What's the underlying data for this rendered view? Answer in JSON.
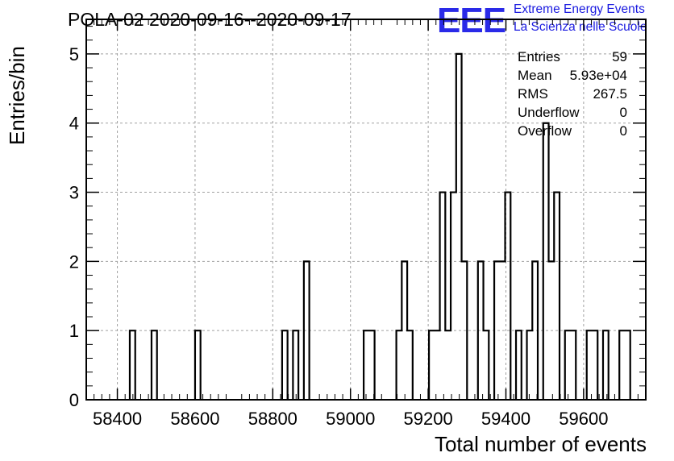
{
  "chart_data": {
    "type": "bar",
    "style": "step-histogram",
    "title": "POLA-02 2020-09-16--2020-09-17",
    "xlabel": "Total number of events",
    "ylabel": "Entries/bin",
    "xlim": [
      58320,
      59760
    ],
    "ylim": [
      0,
      5.5
    ],
    "bin_width": 14,
    "x_ticks": [
      58400,
      58600,
      58800,
      59000,
      59200,
      59400,
      59600
    ],
    "x_tick_labels": [
      "58400",
      "58600",
      "58800",
      "59000",
      "59200",
      "59400",
      "59600"
    ],
    "y_ticks": [
      0,
      1,
      2,
      3,
      4,
      5
    ],
    "y_tick_labels": [
      "0",
      "1",
      "2",
      "3",
      "4",
      "5"
    ],
    "grid": true,
    "bins": [
      {
        "x": 58432,
        "count": 1
      },
      {
        "x": 58488,
        "count": 1
      },
      {
        "x": 58600,
        "count": 1
      },
      {
        "x": 58824,
        "count": 1
      },
      {
        "x": 58852,
        "count": 1
      },
      {
        "x": 58880,
        "count": 2
      },
      {
        "x": 59034,
        "count": 1
      },
      {
        "x": 59048,
        "count": 1
      },
      {
        "x": 59118,
        "count": 1
      },
      {
        "x": 59132,
        "count": 2
      },
      {
        "x": 59146,
        "count": 1
      },
      {
        "x": 59202,
        "count": 1
      },
      {
        "x": 59216,
        "count": 1
      },
      {
        "x": 59230,
        "count": 3
      },
      {
        "x": 59244,
        "count": 1
      },
      {
        "x": 59258,
        "count": 3
      },
      {
        "x": 59272,
        "count": 5
      },
      {
        "x": 59286,
        "count": 2
      },
      {
        "x": 59328,
        "count": 2
      },
      {
        "x": 59342,
        "count": 1
      },
      {
        "x": 59370,
        "count": 2
      },
      {
        "x": 59384,
        "count": 2
      },
      {
        "x": 59398,
        "count": 3
      },
      {
        "x": 59426,
        "count": 1
      },
      {
        "x": 59454,
        "count": 1
      },
      {
        "x": 59468,
        "count": 2
      },
      {
        "x": 59496,
        "count": 4
      },
      {
        "x": 59510,
        "count": 2
      },
      {
        "x": 59524,
        "count": 3
      },
      {
        "x": 59552,
        "count": 1
      },
      {
        "x": 59566,
        "count": 1
      },
      {
        "x": 59608,
        "count": 1
      },
      {
        "x": 59622,
        "count": 1
      },
      {
        "x": 59650,
        "count": 1
      },
      {
        "x": 59692,
        "count": 1
      },
      {
        "x": 59706,
        "count": 1
      }
    ],
    "stats": [
      {
        "label": "Entries",
        "value": "59"
      },
      {
        "label": "Mean",
        "value": "5.93e+04"
      },
      {
        "label": "RMS",
        "value": "267.5"
      },
      {
        "label": "Underflow",
        "value": "0"
      },
      {
        "label": "Overflow",
        "value": "0"
      }
    ]
  },
  "logo": {
    "mark": "EEE",
    "line1": "Extreme Energy Events",
    "line2": "La Scienza nelle Scuole"
  },
  "colors": {
    "logo": "#2a2ae8",
    "line": "#000000",
    "grid": "#a0a0a0"
  }
}
